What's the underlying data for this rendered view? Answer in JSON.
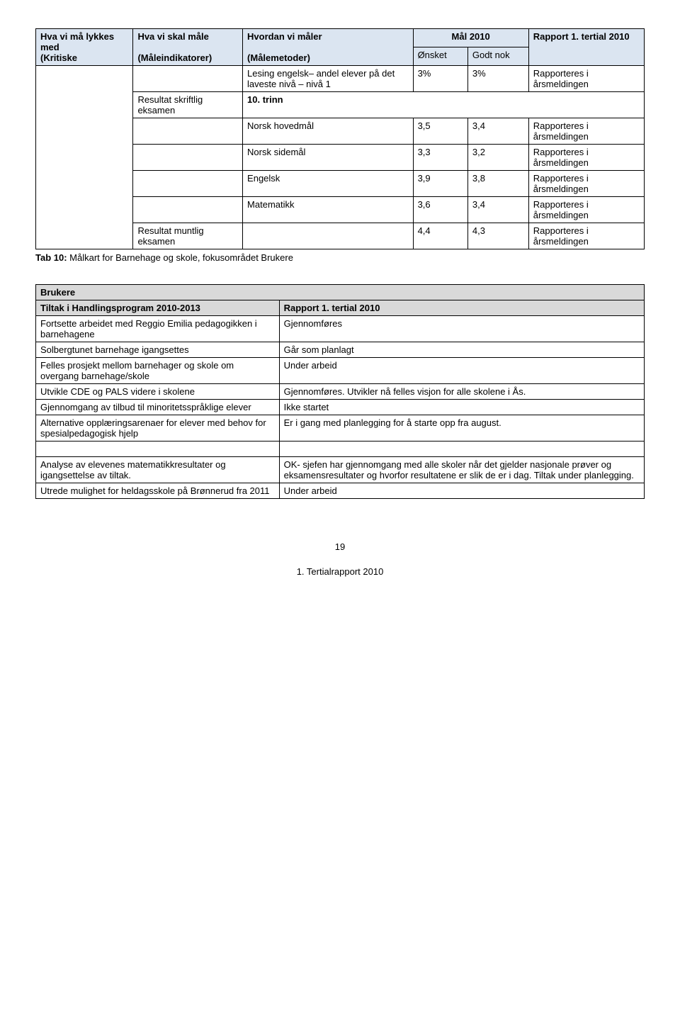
{
  "table1": {
    "header": {
      "c1a": "Hva vi må lykkes med",
      "c1b": "(Kritiske",
      "c2a": "Hva vi skal måle",
      "c2b": "(Måleindikatorer)",
      "c3a": "Hvordan vi måler",
      "c3b": "(Målemetoder)",
      "c4": "Mål 2010",
      "c4a": "Ønsket",
      "c4b": "Godt nok",
      "c5a": "Rapport 1. tertial 2010"
    },
    "rows": [
      {
        "b": "",
        "c": "Lesing engelsk– andel elever på det laveste  nivå – nivå 1",
        "d": "3%",
        "e": "3%",
        "f": "Rapporteres i årsmeldingen"
      },
      {
        "b": "Resultat skriftlig eksamen",
        "c": "10. trinn",
        "d": "",
        "e": "",
        "f": ""
      },
      {
        "b": "",
        "c": "Norsk hovedmål",
        "d": "3,5",
        "e": "3,4",
        "f": "Rapporteres i årsmeldingen"
      },
      {
        "b": "",
        "c": "Norsk sidemål",
        "d": "3,3",
        "e": "3,2",
        "f": "Rapporteres i årsmeldingen"
      },
      {
        "b": "",
        "c": "Engelsk",
        "d": "3,9",
        "e": "3,8",
        "f": "Rapporteres i årsmeldingen"
      },
      {
        "b": "",
        "c": "Matematikk",
        "d": "3,6",
        "e": "3,4",
        "f": "Rapporteres i årsmeldingen"
      },
      {
        "b": "Resultat  muntlig eksamen",
        "c": "",
        "d": "4,4",
        "e": "4,3",
        "f": "Rapporteres i årsmeldingen"
      }
    ],
    "caption_prefix": "Tab 10: ",
    "caption_rest": "Målkart for Barnehage og skole, fokusområdet Brukere"
  },
  "table2": {
    "title": "Brukere",
    "sub_a": "Tiltak i Handlingsprogram 2010-2013",
    "sub_b": "Rapport 1. tertial 2010",
    "rows": [
      {
        "a": "Fortsette arbeidet med Reggio Emilia pedagogikken i barnehagene",
        "b": "Gjennomføres"
      },
      {
        "a": "Solbergtunet barnehage igangsettes",
        "b": "Går som planlagt"
      },
      {
        "a": "Felles prosjekt mellom barnehager og skole om overgang barnehage/skole",
        "b": "Under arbeid"
      },
      {
        "a": "Utvikle CDE og PALS videre i skolene",
        "b": "Gjennomføres. Utvikler nå felles visjon for alle skolene i Ås."
      },
      {
        "a": "Gjennomgang av tilbud til minoritetsspråklige elever",
        "b": "Ikke startet"
      },
      {
        "a": "Alternative opplæringsarenaer for elever med behov for spesialpedagogisk hjelp",
        "b": "Er i gang med planlegging for å starte opp fra august."
      }
    ],
    "rows2": [
      {
        "a": "Analyse av elevenes matematikkresultater og igangsettelse av tiltak.",
        "b": "OK- sjefen har gjennomgang med alle skoler når det gjelder nasjonale prøver og eksamensresultater og hvorfor resultatene er slik de er i dag. Tiltak under planlegging."
      },
      {
        "a": "Utrede mulighet for heldagsskole på Brønnerud fra 2011",
        "b": "Under arbeid"
      }
    ]
  },
  "page_number": "19",
  "footer": "1. Tertialrapport 2010"
}
